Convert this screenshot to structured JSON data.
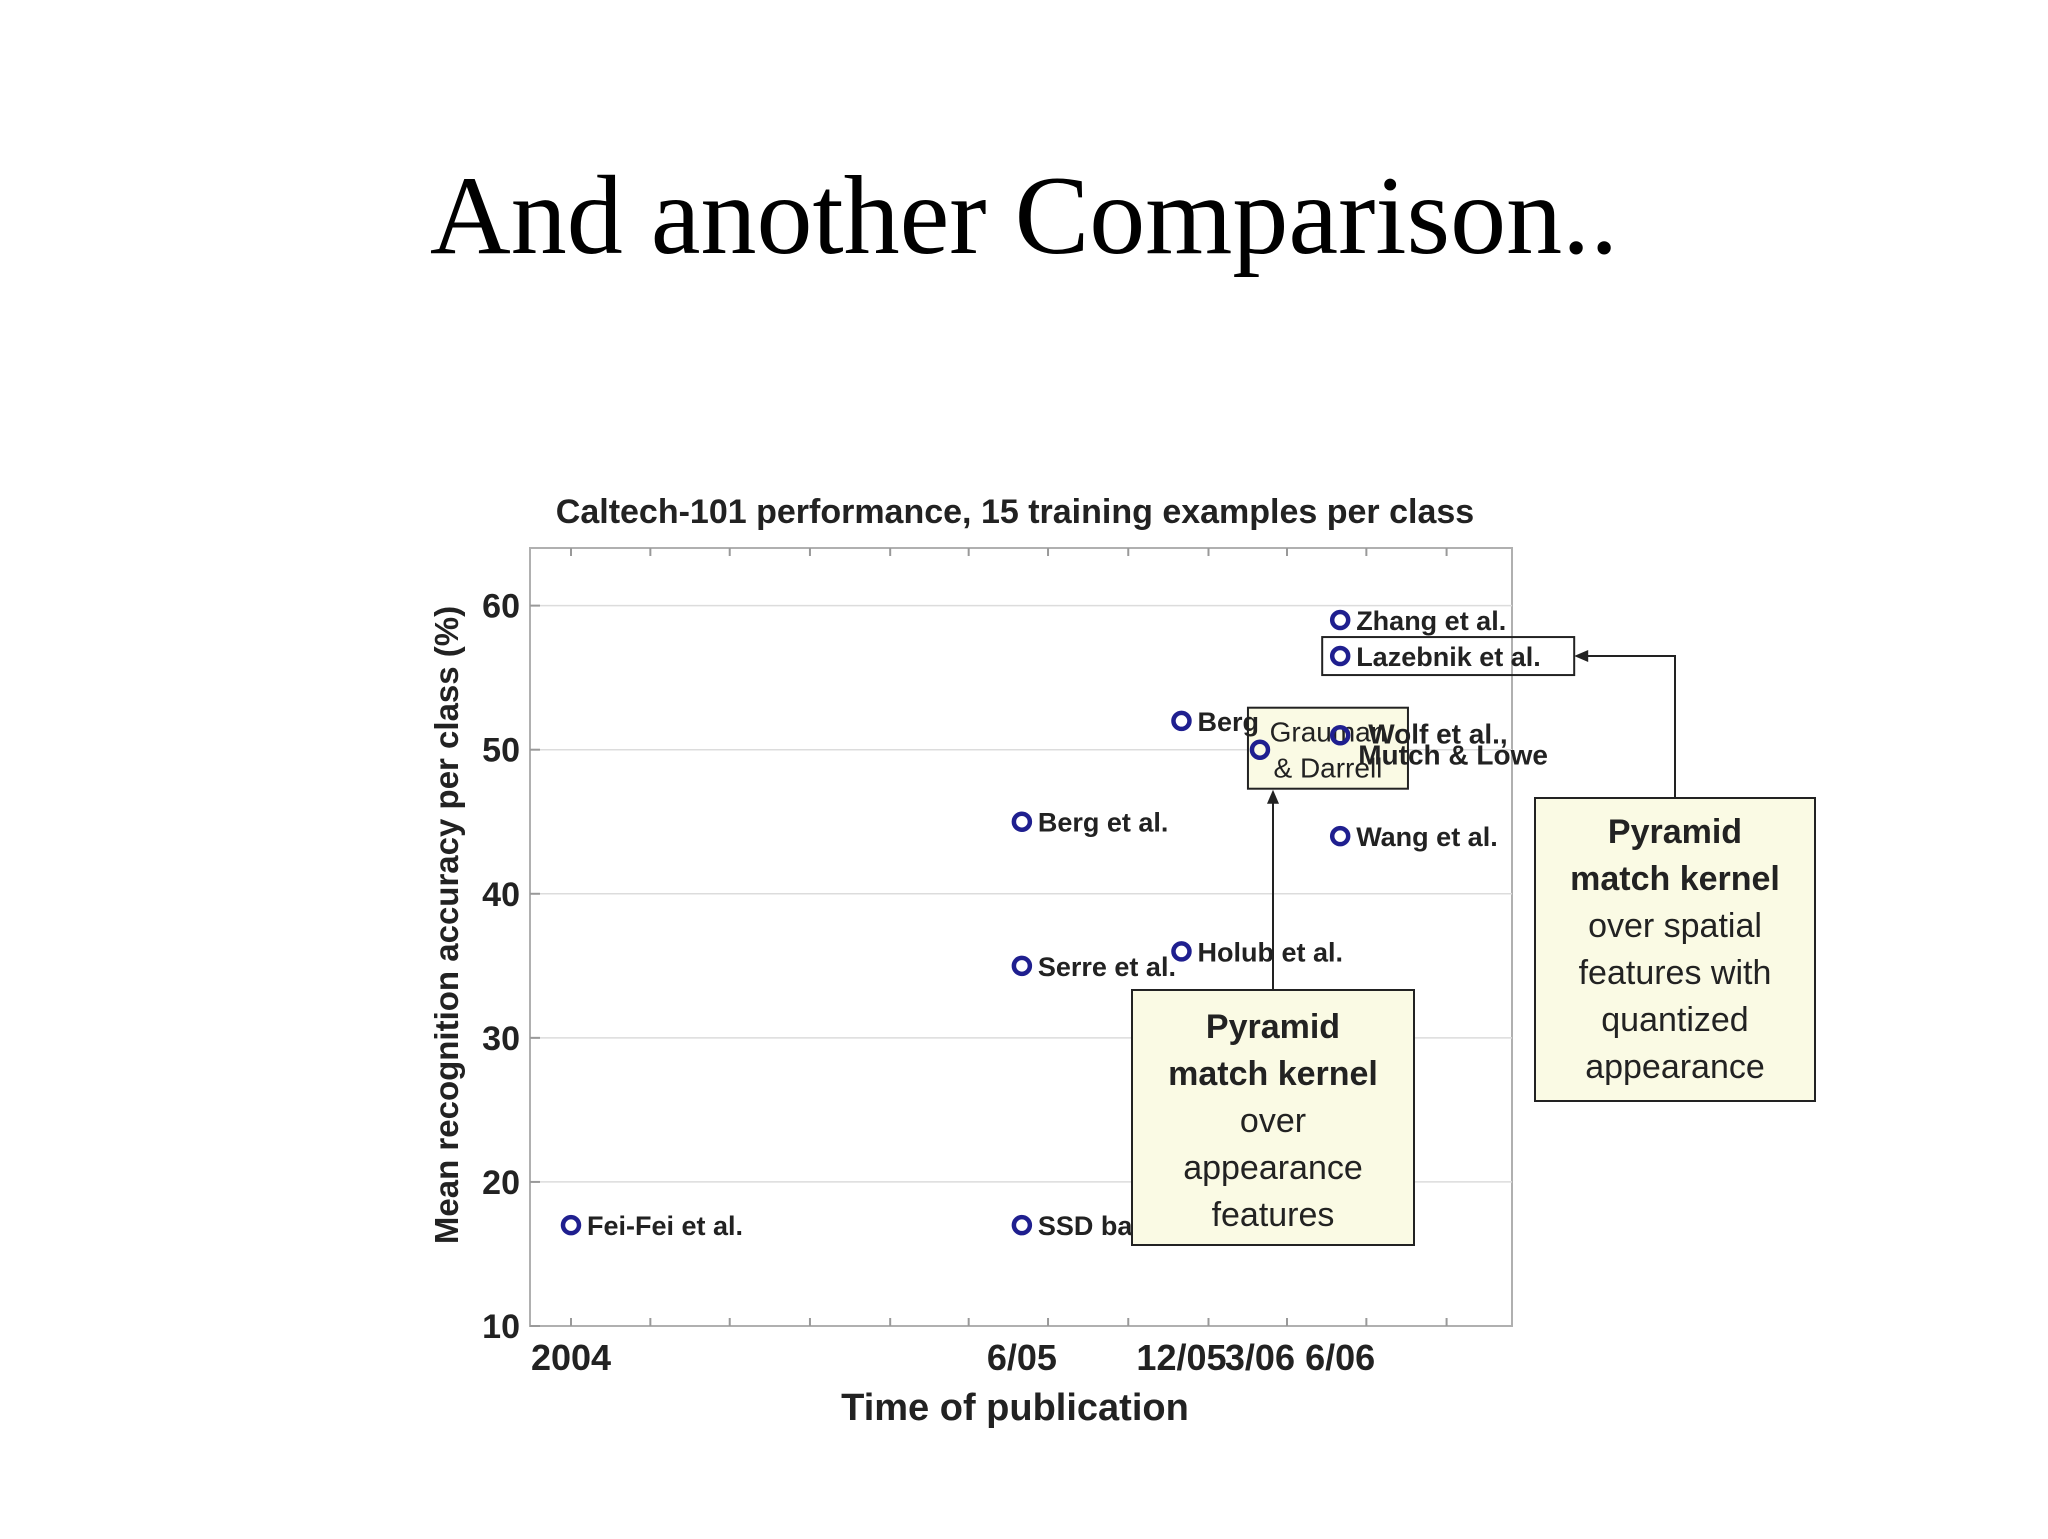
{
  "slide": {
    "title": "And another Comparison.."
  },
  "chart_data": {
    "type": "scatter",
    "title": "Caltech-101 performance, 15 training examples per class",
    "xlabel": "Time of publication",
    "ylabel": "Mean recognition accuracy per class (%)",
    "ylim": [
      10,
      64
    ],
    "yticks": [
      10,
      20,
      30,
      40,
      50,
      60
    ],
    "xlim": [
      "2003-11-15",
      "2006-12-15"
    ],
    "xticks": [
      {
        "date": "2004-01-01",
        "label": "2004"
      },
      {
        "date": "2005-06-01",
        "label": "6/05"
      },
      {
        "date": "2005-12-01",
        "label": "12/05"
      },
      {
        "date": "2006-03-01",
        "label": "3/06"
      },
      {
        "date": "2006-06-01",
        "label": "6/06"
      }
    ],
    "grid": true,
    "marker_color": "#1f1f8f",
    "points": [
      {
        "x": "2004-01-01",
        "y": 17,
        "label": "Fei-Fei et al."
      },
      {
        "x": "2005-06-01",
        "y": 17,
        "label": "SSD baseline"
      },
      {
        "x": "2005-06-01",
        "y": 35,
        "label": "Serre et al."
      },
      {
        "x": "2005-06-01",
        "y": 45,
        "label": "Berg et al."
      },
      {
        "x": "2005-12-01",
        "y": 36,
        "label": "Holub et al."
      },
      {
        "x": "2005-12-01",
        "y": 52,
        "label": "Berg"
      },
      {
        "x": "2006-03-01",
        "y": 50,
        "label": ""
      },
      {
        "x": "2006-06-01",
        "y": 59,
        "label": "Zhang et al."
      },
      {
        "x": "2006-06-01",
        "y": 56.5,
        "label": "Lazebnik et al."
      },
      {
        "x": "2006-06-01",
        "y": 51,
        "label": ""
      },
      {
        "x": "2006-06-01",
        "y": 44,
        "label": "Wang et al."
      }
    ],
    "annotations": {
      "grauman_box": [
        "Grauman",
        "& Darrell"
      ],
      "wolf_label": [
        "Wolf et al.,",
        "Mutch & Lowe"
      ],
      "callout_pmk_appearance": {
        "bold_lines": [
          "Pyramid",
          "match kernel"
        ],
        "lines": [
          "over",
          "appearance",
          "features"
        ]
      },
      "callout_pmk_spatial": {
        "bold_lines": [
          "Pyramid",
          "match kernel"
        ],
        "lines": [
          "over spatial",
          "features with",
          "quantized",
          "appearance"
        ]
      }
    }
  }
}
